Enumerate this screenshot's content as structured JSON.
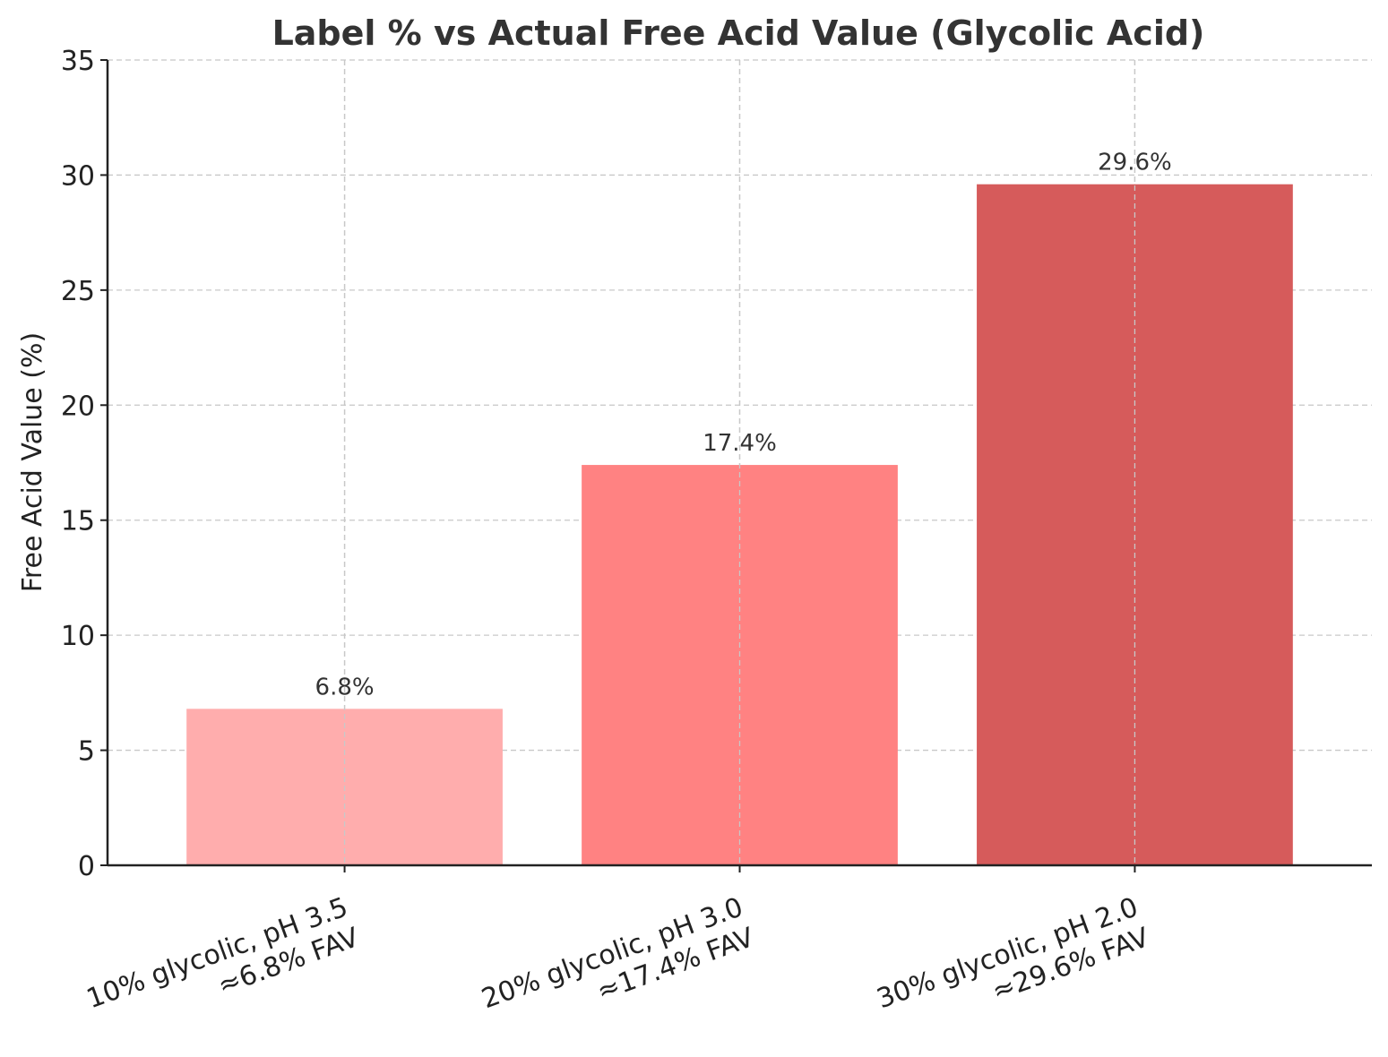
{
  "chart_data": {
    "type": "bar",
    "title": "Label % vs Actual Free Acid Value (Glycolic Acid)",
    "xlabel": "",
    "ylabel": "Free Acid Value (%)",
    "ylim": [
      0,
      35
    ],
    "yticks": [
      "0",
      "5",
      "10",
      "15",
      "20",
      "25",
      "30",
      "35"
    ],
    "categories": [
      [
        "10% glycolic, pH 3.5",
        "≈6.8% FAV"
      ],
      [
        "20% glycolic, pH 3.0",
        "≈17.4% FAV"
      ],
      [
        "30% glycolic, pH 2.0",
        "≈29.6% FAV"
      ]
    ],
    "values": [
      6.8,
      17.4,
      29.6
    ],
    "data_labels": [
      "6.8%",
      "17.4%",
      "29.6%"
    ],
    "colors": [
      "#ffadad",
      "#ff8282",
      "#d65b5b"
    ],
    "grid": true
  }
}
